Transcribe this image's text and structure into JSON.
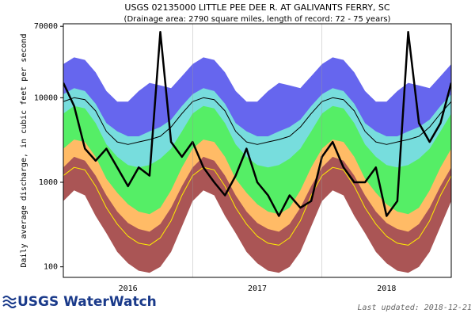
{
  "chart_data": {
    "type": "line",
    "title": "USGS 02135000 LITTLE PEE DEE R. AT GALIVANTS FERRY, SC",
    "subtitle": "(Drainage area: 2790 square miles, length of record: 72 - 75 years)",
    "y_label": "Daily average discharge, in cubic feet per second",
    "log_y": true,
    "xlim": [
      2016,
      2019
    ],
    "xticks": [
      {
        "value": 2016.5,
        "label": "2016"
      },
      {
        "value": 2017.5,
        "label": "2017"
      },
      {
        "value": 2018.5,
        "label": "2018"
      }
    ],
    "vgrid": [
      2017,
      2018
    ],
    "ylim": [
      75,
      75000
    ],
    "yticks": [
      100,
      1000,
      10000,
      70000
    ],
    "x": [
      2016,
      2016.083,
      2016.167,
      2016.25,
      2016.333,
      2016.417,
      2016.5,
      2016.583,
      2016.667,
      2016.75,
      2016.833,
      2016.917,
      2017,
      2017.083,
      2017.167,
      2017.25,
      2017.333,
      2017.417,
      2017.5,
      2017.583,
      2017.667,
      2017.75,
      2017.833,
      2017.917,
      2018,
      2018.083,
      2018.167,
      2018.25,
      2018.333,
      2018.417,
      2018.5,
      2018.583,
      2018.667,
      2018.75,
      2018.833,
      2018.917,
      2019
    ],
    "series": [
      {
        "style": "band",
        "color": "#6666ee",
        "values": [
          25000,
          30000,
          28000,
          20000,
          12000,
          9000,
          9000,
          12000,
          15000,
          14000,
          13000,
          18000,
          25000,
          30000,
          28000,
          20000,
          12000,
          9000,
          9000,
          12000,
          15000,
          14000,
          13000,
          18000,
          25000,
          30000,
          28000,
          20000,
          12000,
          9000,
          9000,
          12000,
          15000,
          14000,
          13000,
          18000,
          25000
        ]
      },
      {
        "style": "band",
        "color": "#77dddd",
        "values": [
          11000,
          13000,
          12000,
          8500,
          5000,
          4000,
          3500,
          3500,
          4000,
          4500,
          5500,
          8000,
          11000,
          13000,
          12000,
          8500,
          5000,
          4000,
          3500,
          3500,
          4000,
          4500,
          5500,
          8000,
          11000,
          13000,
          12000,
          8500,
          5000,
          4000,
          3500,
          3500,
          4000,
          4500,
          5500,
          8000,
          11000
        ]
      },
      {
        "style": "band",
        "color": "#55ee66",
        "values": [
          6500,
          8000,
          7500,
          5000,
          2800,
          2000,
          1600,
          1500,
          1600,
          1900,
          2500,
          4000,
          6500,
          8000,
          7500,
          5000,
          2800,
          2000,
          1600,
          1500,
          1600,
          1900,
          2500,
          4000,
          6500,
          8000,
          7500,
          5000,
          2800,
          2000,
          1600,
          1500,
          1600,
          1900,
          2500,
          4000,
          6500
        ]
      },
      {
        "style": "band",
        "color": "#ffbb66",
        "values": [
          2500,
          3200,
          3000,
          2000,
          1100,
          750,
          550,
          450,
          420,
          500,
          800,
          1500,
          2500,
          3200,
          3000,
          2000,
          1100,
          750,
          550,
          450,
          420,
          500,
          800,
          1500,
          2500,
          3200,
          3000,
          2000,
          1100,
          750,
          550,
          450,
          420,
          500,
          800,
          1500,
          2500
        ]
      },
      {
        "style": "band",
        "color": "#aa5555",
        "values": [
          1500,
          2000,
          1800,
          1200,
          700,
          450,
          330,
          280,
          260,
          320,
          500,
          900,
          1500,
          2000,
          1800,
          1200,
          700,
          450,
          330,
          280,
          260,
          320,
          500,
          900,
          1500,
          2000,
          1800,
          1200,
          700,
          450,
          330,
          280,
          260,
          320,
          500,
          900,
          1500
        ]
      },
      {
        "style": "band",
        "color": "#ffffff",
        "values": [
          600,
          800,
          700,
          400,
          250,
          150,
          110,
          90,
          85,
          100,
          150,
          300,
          600,
          800,
          700,
          400,
          250,
          150,
          110,
          90,
          85,
          100,
          150,
          300,
          600,
          800,
          700,
          400,
          250,
          150,
          110,
          90,
          85,
          100,
          150,
          300,
          600
        ]
      },
      {
        "style": "line",
        "color": "#ffee00",
        "width": 1,
        "values": [
          1200,
          1500,
          1400,
          900,
          500,
          320,
          230,
          190,
          180,
          220,
          350,
          700,
          1200,
          1500,
          1400,
          900,
          500,
          320,
          230,
          190,
          180,
          220,
          350,
          700,
          1200,
          1500,
          1400,
          900,
          500,
          320,
          230,
          190,
          180,
          220,
          350,
          700,
          1200
        ]
      },
      {
        "style": "line",
        "color": "#000000",
        "width": 1,
        "values": [
          9000,
          10000,
          9500,
          7000,
          4000,
          3000,
          2800,
          3000,
          3200,
          3500,
          4500,
          6500,
          9000,
          10000,
          9500,
          7000,
          4000,
          3000,
          2800,
          3000,
          3200,
          3500,
          4500,
          6500,
          9000,
          10000,
          9500,
          7000,
          4000,
          3000,
          2800,
          3000,
          3200,
          3500,
          4500,
          6500,
          9000
        ]
      },
      {
        "style": "line",
        "color": "#000000",
        "width": 2.5,
        "values": [
          15000,
          8000,
          2500,
          1800,
          2500,
          1500,
          900,
          1500,
          1200,
          60000,
          3000,
          2000,
          3000,
          1500,
          1000,
          700,
          1200,
          2500,
          1000,
          700,
          400,
          700,
          500,
          600,
          2000,
          3000,
          1500,
          1000,
          1000,
          1500,
          400,
          600,
          60000,
          5000,
          3000,
          5000,
          15000
        ]
      }
    ],
    "logo": "USGS WaterWatch",
    "updated": "Last updated: 2018-12-21"
  }
}
